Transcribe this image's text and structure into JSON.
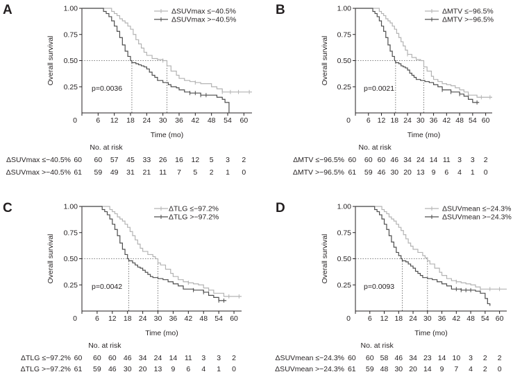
{
  "chart_data": [
    {
      "type": "line",
      "panel_label": "A",
      "xlabel": "Time (mo)",
      "ylabel": "Overall survival",
      "xlim": [
        0,
        63
      ],
      "ylim": [
        0,
        1.0
      ],
      "x_ticks": [
        "0",
        "6",
        "12",
        "18",
        "24",
        "30",
        "36",
        "42",
        "48",
        "54",
        "60"
      ],
      "y_ticks": [
        "0.25",
        "0.50",
        "0.75",
        "1.00"
      ],
      "pvalue": "p=0.0036",
      "median_lines": [
        18.5,
        31.5
      ],
      "risk_title": "No. at risk",
      "legend": [
        "ΔSUVmax ≤−40.5%",
        "ΔSUVmax >−40.5%"
      ],
      "series": [
        {
          "name": "ΔSUVmax ≤−40.5%",
          "color": "#b3b3b3",
          "x": [
            0,
            10,
            11,
            12,
            13,
            14,
            15,
            16,
            17,
            18,
            19,
            20,
            21,
            22,
            23,
            24,
            26,
            28,
            30,
            31.5,
            33,
            35,
            36,
            38,
            40,
            42,
            44,
            48,
            50,
            52,
            63
          ],
          "y": [
            1.0,
            1.0,
            0.97,
            0.95,
            0.93,
            0.9,
            0.88,
            0.86,
            0.83,
            0.8,
            0.75,
            0.7,
            0.66,
            0.62,
            0.58,
            0.55,
            0.52,
            0.51,
            0.5,
            0.45,
            0.4,
            0.36,
            0.33,
            0.31,
            0.3,
            0.29,
            0.28,
            0.25,
            0.23,
            0.2,
            0.2
          ],
          "censor_x": [
            30,
            42,
            52,
            55,
            58,
            62
          ]
        },
        {
          "name": "ΔSUVmax >−40.5%",
          "color": "#4d4d4d",
          "x": [
            0,
            6,
            8,
            9,
            10,
            11,
            12,
            13,
            14,
            15,
            16,
            17,
            18,
            18.5,
            20,
            21,
            22,
            23,
            24,
            25,
            26,
            27,
            28,
            30,
            32,
            33,
            35,
            36,
            38,
            40,
            44,
            48,
            50,
            52,
            53,
            54.5
          ],
          "y": [
            1.0,
            1.0,
            0.97,
            0.95,
            0.92,
            0.88,
            0.83,
            0.78,
            0.72,
            0.65,
            0.59,
            0.54,
            0.5,
            0.48,
            0.47,
            0.46,
            0.45,
            0.44,
            0.42,
            0.39,
            0.36,
            0.34,
            0.31,
            0.29,
            0.27,
            0.25,
            0.24,
            0.22,
            0.2,
            0.19,
            0.17,
            0.17,
            0.15,
            0.13,
            0.1,
            0.0
          ],
          "censor_x": [
            40,
            42,
            44,
            46
          ]
        }
      ],
      "risk_table": [
        {
          "label": "ΔSUVmax ≤−40.5%",
          "counts": [
            "60",
            "60",
            "57",
            "45",
            "33",
            "26",
            "16",
            "12",
            "5",
            "3",
            "2"
          ]
        },
        {
          "label": "ΔSUVmax >−40.5%",
          "counts": [
            "61",
            "59",
            "49",
            "31",
            "21",
            "11",
            "7",
            "5",
            "2",
            "1",
            "0"
          ]
        }
      ]
    },
    {
      "type": "line",
      "panel_label": "B",
      "xlabel": "Time (mo)",
      "ylabel": "Overall survival",
      "xlim": [
        0,
        63
      ],
      "ylim": [
        0,
        1.0
      ],
      "x_ticks": [
        "0",
        "6",
        "12",
        "18",
        "24",
        "30",
        "36",
        "42",
        "48",
        "54",
        "60"
      ],
      "y_ticks": [
        "0.25",
        "0.50",
        "0.75",
        "1.00"
      ],
      "pvalue": "p=0.0021",
      "median_lines": [
        18.5,
        31.5
      ],
      "risk_title": "No. at risk",
      "legend": [
        "ΔMTV ≤−96.5%",
        "ΔMTV >−96.5%"
      ],
      "series": [
        {
          "name": "ΔMTV ≤−96.5%",
          "color": "#b3b3b3",
          "x": [
            0,
            10,
            11,
            12,
            13,
            14,
            15,
            16,
            17,
            18,
            19,
            20,
            21,
            22,
            23,
            24,
            26,
            28,
            30,
            31.5,
            33,
            35,
            36,
            38,
            40,
            42,
            44,
            46,
            48,
            50,
            52,
            56,
            63
          ],
          "y": [
            1.0,
            1.0,
            0.97,
            0.95,
            0.93,
            0.9,
            0.88,
            0.86,
            0.83,
            0.8,
            0.76,
            0.72,
            0.68,
            0.64,
            0.6,
            0.56,
            0.53,
            0.51,
            0.5,
            0.44,
            0.4,
            0.35,
            0.32,
            0.3,
            0.28,
            0.27,
            0.26,
            0.24,
            0.22,
            0.2,
            0.17,
            0.15,
            0.15
          ],
          "censor_x": [
            24,
            52,
            58,
            62
          ]
        },
        {
          "name": "ΔMTV >−96.5%",
          "color": "#4d4d4d",
          "x": [
            0,
            6,
            8,
            9,
            10,
            11,
            12,
            13,
            14,
            15,
            16,
            17,
            18,
            18.5,
            20,
            21,
            22,
            23,
            24,
            25,
            26,
            27,
            28,
            30,
            32,
            34,
            36,
            38,
            40,
            44,
            48,
            50,
            52,
            54,
            57
          ],
          "y": [
            1.0,
            1.0,
            0.97,
            0.95,
            0.92,
            0.88,
            0.83,
            0.78,
            0.72,
            0.65,
            0.59,
            0.54,
            0.5,
            0.48,
            0.47,
            0.45,
            0.44,
            0.43,
            0.41,
            0.38,
            0.36,
            0.34,
            0.32,
            0.31,
            0.3,
            0.29,
            0.27,
            0.25,
            0.22,
            0.2,
            0.18,
            0.16,
            0.13,
            0.1,
            0.1
          ],
          "censor_x": [
            40,
            44,
            48,
            56
          ]
        }
      ],
      "risk_table": [
        {
          "label": "ΔMTV ≤−96.5%",
          "counts": [
            "60",
            "60",
            "60",
            "46",
            "34",
            "24",
            "14",
            "11",
            "3",
            "3",
            "2"
          ]
        },
        {
          "label": "ΔMTV >−96.5%",
          "counts": [
            "61",
            "59",
            "46",
            "30",
            "20",
            "13",
            "9",
            "6",
            "4",
            "1",
            "0"
          ]
        }
      ]
    },
    {
      "type": "line",
      "panel_label": "C",
      "xlabel": "Time (mo)",
      "ylabel": "Overall survival",
      "xlim": [
        0,
        63
      ],
      "ylim": [
        0,
        1.0
      ],
      "x_ticks": [
        "0",
        "6",
        "12",
        "18",
        "24",
        "30",
        "36",
        "42",
        "48",
        "54",
        "60"
      ],
      "y_ticks": [
        "0.25",
        "0.50",
        "0.75",
        "1.00"
      ],
      "pvalue": "p=0.0042",
      "median_lines": [
        18.5,
        30
      ],
      "risk_title": "No. at risk",
      "legend": [
        "ΔTLG ≤−97.2%",
        "ΔTLG >−97.2%"
      ],
      "series": [
        {
          "name": "ΔTLG ≤−97.2%",
          "color": "#b3b3b3",
          "x": [
            0,
            10,
            11,
            12,
            13,
            14,
            15,
            16,
            17,
            18,
            19,
            20,
            21,
            22,
            23,
            24,
            26,
            28,
            29,
            30,
            31,
            33,
            35,
            36,
            38,
            40,
            42,
            44,
            46,
            48,
            50,
            52,
            56,
            63
          ],
          "y": [
            1.0,
            1.0,
            0.97,
            0.95,
            0.93,
            0.9,
            0.88,
            0.86,
            0.83,
            0.8,
            0.76,
            0.72,
            0.68,
            0.64,
            0.6,
            0.57,
            0.54,
            0.52,
            0.5,
            0.46,
            0.44,
            0.4,
            0.36,
            0.33,
            0.3,
            0.28,
            0.27,
            0.26,
            0.25,
            0.22,
            0.2,
            0.17,
            0.14,
            0.14
          ],
          "censor_x": [
            42,
            50,
            58,
            62
          ]
        },
        {
          "name": "ΔTLG >−97.2%",
          "color": "#4d4d4d",
          "x": [
            0,
            6,
            8,
            9,
            10,
            11,
            12,
            13,
            14,
            15,
            16,
            17,
            18,
            18.5,
            20,
            21,
            22,
            23,
            24,
            25,
            26,
            27,
            28,
            30,
            32,
            34,
            36,
            38,
            40,
            44,
            48,
            50,
            52,
            54,
            57
          ],
          "y": [
            1.0,
            1.0,
            0.97,
            0.95,
            0.92,
            0.88,
            0.83,
            0.78,
            0.72,
            0.65,
            0.59,
            0.54,
            0.5,
            0.48,
            0.46,
            0.44,
            0.42,
            0.41,
            0.39,
            0.37,
            0.35,
            0.33,
            0.32,
            0.31,
            0.3,
            0.28,
            0.26,
            0.24,
            0.21,
            0.2,
            0.18,
            0.15,
            0.13,
            0.1,
            0.1
          ],
          "censor_x": [
            44,
            48,
            54,
            56
          ]
        }
      ],
      "risk_table": [
        {
          "label": "ΔTLG ≤−97.2%",
          "counts": [
            "60",
            "60",
            "60",
            "46",
            "34",
            "24",
            "14",
            "11",
            "3",
            "3",
            "2"
          ]
        },
        {
          "label": "ΔTLG >−97.2%",
          "counts": [
            "61",
            "59",
            "46",
            "30",
            "20",
            "13",
            "9",
            "6",
            "4",
            "1",
            "0"
          ]
        }
      ]
    },
    {
      "type": "line",
      "panel_label": "D",
      "xlabel": "Time (mo)",
      "ylabel": "Overall survival",
      "xlim": [
        0,
        63
      ],
      "ylim": [
        0,
        1.0
      ],
      "x_ticks": [
        "0",
        "6",
        "12",
        "18",
        "24",
        "30",
        "36",
        "42",
        "48",
        "54",
        "60"
      ],
      "y_ticks": [
        "0.25",
        "0.50",
        "0.75",
        "1.00"
      ],
      "pvalue": "p=0.0093",
      "median_lines": [
        19.5,
        30
      ],
      "risk_title": "No. at risk",
      "legend": [
        "ΔSUVmean ≤−24.3%",
        "ΔSUVmean >−24.3%"
      ],
      "series": [
        {
          "name": "ΔSUVmean ≤−24.3%",
          "color": "#b3b3b3",
          "x": [
            0,
            10,
            11,
            12,
            13,
            14,
            15,
            16,
            17,
            18,
            19,
            20,
            21,
            22,
            23,
            24,
            26,
            28,
            29,
            30,
            31,
            33,
            35,
            36,
            38,
            40,
            42,
            44,
            46,
            48,
            50,
            52,
            63
          ],
          "y": [
            1.0,
            1.0,
            0.97,
            0.95,
            0.93,
            0.9,
            0.88,
            0.86,
            0.83,
            0.8,
            0.77,
            0.73,
            0.69,
            0.65,
            0.62,
            0.59,
            0.56,
            0.53,
            0.51,
            0.48,
            0.45,
            0.41,
            0.37,
            0.34,
            0.31,
            0.29,
            0.28,
            0.27,
            0.26,
            0.25,
            0.23,
            0.21,
            0.21
          ],
          "censor_x": [
            42,
            52,
            56,
            60
          ]
        },
        {
          "name": "ΔSUVmean >−24.3%",
          "color": "#4d4d4d",
          "x": [
            0,
            6,
            8,
            9,
            10,
            11,
            12,
            13,
            14,
            15,
            16,
            17,
            18,
            19,
            19.5,
            21,
            22,
            23,
            24,
            25,
            26,
            27,
            28,
            30,
            32,
            34,
            36,
            38,
            40,
            44,
            48,
            50,
            52,
            54,
            55,
            56
          ],
          "y": [
            1.0,
            1.0,
            0.97,
            0.95,
            0.92,
            0.88,
            0.83,
            0.78,
            0.72,
            0.66,
            0.61,
            0.56,
            0.53,
            0.5,
            0.48,
            0.47,
            0.45,
            0.43,
            0.41,
            0.38,
            0.36,
            0.34,
            0.32,
            0.31,
            0.3,
            0.28,
            0.26,
            0.24,
            0.21,
            0.2,
            0.2,
            0.19,
            0.17,
            0.12,
            0.07,
            0.05
          ],
          "censor_x": [
            42,
            44,
            46,
            48
          ]
        }
      ],
      "risk_table": [
        {
          "label": "ΔSUVmean ≤−24.3%",
          "counts": [
            "60",
            "60",
            "58",
            "46",
            "34",
            "23",
            "14",
            "10",
            "3",
            "2",
            "2"
          ]
        },
        {
          "label": "ΔSUVmean >−24.3%",
          "counts": [
            "61",
            "59",
            "48",
            "30",
            "20",
            "14",
            "9",
            "7",
            "4",
            "2",
            "0"
          ]
        }
      ]
    }
  ]
}
